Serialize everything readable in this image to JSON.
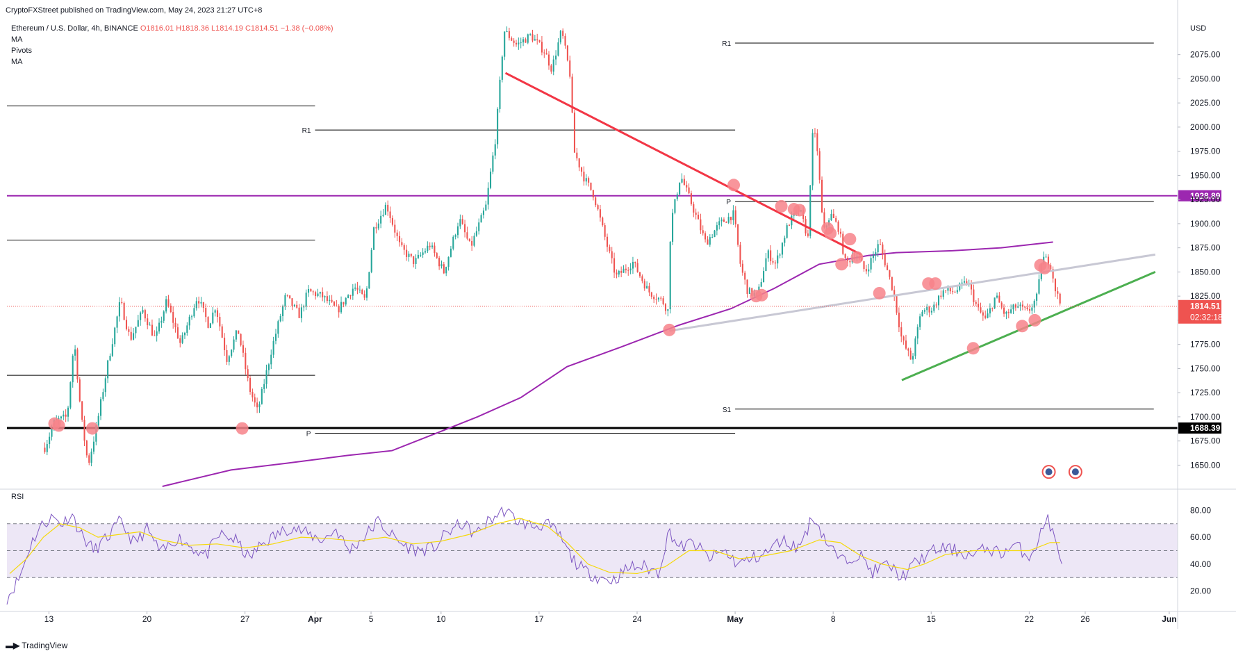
{
  "header": {
    "published": "CryptoFXStreet published on TradingView.com, May 24, 2023 21:27 UTC+8",
    "symbol": "Ethereum / U.S. Dollar, 4h, BINANCE",
    "ohlc": {
      "o": "O1816.01",
      "h": "H1818.36",
      "l": "L1814.19",
      "c": "C1814.51",
      "change": "−1.38 (−0.08%)"
    },
    "indicators": [
      "MA",
      "Pivots",
      "MA"
    ]
  },
  "footer": {
    "brand": "TradingView"
  },
  "colors": {
    "up": "#26a69a",
    "down": "#ef5350",
    "ma": "#9c27b0",
    "purple_level": "#9c27b0",
    "red_trend": "#f23645",
    "green_trend": "#4caf50",
    "grey_trend": "#c8c8d4",
    "marker": "#f7838a",
    "rsi": "#7e57c2",
    "rsi_ma": "#f5d90a",
    "rsi_band": "#ede7f6"
  },
  "chart_data": [
    {
      "type": "candlestick",
      "title": "Ethereum / U.S. Dollar, 4h, BINANCE",
      "y_unit": "USD",
      "ylim": [
        1628,
        2110
      ],
      "y_ticks": [
        1650,
        1675,
        1700,
        1725,
        1750,
        1775,
        1800,
        1825,
        1850,
        1875,
        1900,
        1925,
        1950,
        1975,
        2000,
        2025,
        2050,
        2075
      ],
      "x_ticks": [
        "13",
        "20",
        "27",
        "Apr",
        "5",
        "10",
        "17",
        "24",
        "May",
        "8",
        "15",
        "22",
        "26",
        "Jun"
      ],
      "x_tick_days": [
        0,
        7,
        14,
        19,
        23,
        28,
        35,
        42,
        49,
        56,
        63,
        70,
        74,
        80
      ],
      "last_price_label": "1814.51",
      "countdown_label": "02:32:18",
      "anchor_closes": [
        [
          -0.3,
          1668
        ],
        [
          0.4,
          1695
        ],
        [
          1.3,
          1700
        ],
        [
          1.8,
          1780
        ],
        [
          2.3,
          1700
        ],
        [
          2.8,
          1650
        ],
        [
          3.4,
          1690
        ],
        [
          4.2,
          1755
        ],
        [
          5.1,
          1820
        ],
        [
          5.8,
          1780
        ],
        [
          6.7,
          1810
        ],
        [
          7.6,
          1780
        ],
        [
          8.4,
          1820
        ],
        [
          9.4,
          1775
        ],
        [
          10.6,
          1825
        ],
        [
          11.4,
          1795
        ],
        [
          11.9,
          1815
        ],
        [
          12.7,
          1760
        ],
        [
          13.5,
          1790
        ],
        [
          14.3,
          1730
        ],
        [
          14.9,
          1705
        ],
        [
          15.9,
          1770
        ],
        [
          16.9,
          1825
        ],
        [
          17.9,
          1805
        ],
        [
          18.5,
          1830
        ],
        [
          19.5,
          1825
        ],
        [
          20.6,
          1810
        ],
        [
          21.8,
          1835
        ],
        [
          22.6,
          1820
        ],
        [
          23.2,
          1895
        ],
        [
          24.1,
          1920
        ],
        [
          25.1,
          1875
        ],
        [
          26.1,
          1860
        ],
        [
          27.2,
          1878
        ],
        [
          28.2,
          1850
        ],
        [
          29.3,
          1905
        ],
        [
          30.1,
          1875
        ],
        [
          31.2,
          1918
        ],
        [
          31.9,
          1990
        ],
        [
          32.5,
          2100
        ],
        [
          33.4,
          2085
        ],
        [
          34.4,
          2095
        ],
        [
          35.4,
          2078
        ],
        [
          35.9,
          2060
        ],
        [
          36.6,
          2100
        ],
        [
          37.2,
          2055
        ],
        [
          37.5,
          1975
        ],
        [
          38.2,
          1948
        ],
        [
          38.9,
          1930
        ],
        [
          39.9,
          1875
        ],
        [
          40.5,
          1845
        ],
        [
          41.7,
          1860
        ],
        [
          42.8,
          1830
        ],
        [
          43.8,
          1820
        ],
        [
          44.2,
          1810
        ],
        [
          44.4,
          1900
        ],
        [
          45.1,
          1950
        ],
        [
          45.9,
          1920
        ],
        [
          46.9,
          1880
        ],
        [
          47.9,
          1900
        ],
        [
          48.9,
          1910
        ],
        [
          49.4,
          1855
        ],
        [
          49.9,
          1830
        ],
        [
          50.6,
          1825
        ],
        [
          51.3,
          1870
        ],
        [
          51.9,
          1858
        ],
        [
          52.8,
          1900
        ],
        [
          53.6,
          1915
        ],
        [
          54.2,
          1885
        ],
        [
          54.5,
          1990
        ],
        [
          54.8,
          1990
        ],
        [
          55.3,
          1890
        ],
        [
          55.8,
          1910
        ],
        [
          56.4,
          1895
        ],
        [
          56.9,
          1858
        ],
        [
          57.6,
          1870
        ],
        [
          58.3,
          1850
        ],
        [
          59.3,
          1880
        ],
        [
          60.3,
          1830
        ],
        [
          60.9,
          1780
        ],
        [
          61.6,
          1758
        ],
        [
          62.3,
          1810
        ],
        [
          63.1,
          1812
        ],
        [
          63.8,
          1830
        ],
        [
          64.7,
          1830
        ],
        [
          65.6,
          1840
        ],
        [
          66.3,
          1812
        ],
        [
          66.9,
          1800
        ],
        [
          67.6,
          1825
        ],
        [
          68.3,
          1805
        ],
        [
          69.1,
          1815
        ],
        [
          69.9,
          1808
        ],
        [
          70.6,
          1825
        ],
        [
          70.9,
          1865
        ],
        [
          71.5,
          1860
        ],
        [
          71.9,
          1830
        ],
        [
          72.3,
          1814.51
        ]
      ],
      "horizontal_levels": [
        {
          "price": 1928.89,
          "label": "1928.89",
          "color": "#9c27b0",
          "from_day": -3.0,
          "to_day": 80.6,
          "width": 2
        },
        {
          "price": 1688.39,
          "label": "1688.39",
          "color": "#000000",
          "from_day": -3.0,
          "to_day": 80.6,
          "width": 3
        }
      ],
      "pivots": [
        {
          "label": "R1",
          "price": 1997,
          "from_day": 19.0,
          "to_day": 49.0
        },
        {
          "label": "P",
          "price": 1683,
          "from_day": 19.0,
          "to_day": 49.0
        },
        {
          "label": "",
          "price": 2022,
          "from_day": -3.0,
          "to_day": 19.0
        },
        {
          "label": "",
          "price": 1883,
          "from_day": -3.0,
          "to_day": 19.0
        },
        {
          "label": "",
          "price": 1743,
          "from_day": -3.0,
          "to_day": 19.0
        },
        {
          "label": "R1",
          "price": 2087,
          "from_day": 49.0,
          "to_day": 78.9
        },
        {
          "label": "P",
          "price": 1923,
          "from_day": 49.0,
          "to_day": 78.9
        },
        {
          "label": "S1",
          "price": 1708,
          "from_day": 49.0,
          "to_day": 78.9
        }
      ],
      "moving_average": [
        [
          8.1,
          1628
        ],
        [
          13.0,
          1645
        ],
        [
          17.0,
          1652
        ],
        [
          21.3,
          1660
        ],
        [
          24.5,
          1665
        ],
        [
          28.0,
          1685
        ],
        [
          30.6,
          1700
        ],
        [
          33.7,
          1720
        ],
        [
          37.0,
          1752
        ],
        [
          40.8,
          1772
        ],
        [
          45.0,
          1795
        ],
        [
          48.7,
          1812
        ],
        [
          51.8,
          1833
        ],
        [
          55.0,
          1858
        ],
        [
          58.5,
          1867
        ],
        [
          60.5,
          1870
        ],
        [
          64.5,
          1872
        ],
        [
          68.0,
          1875
        ],
        [
          71.7,
          1881
        ]
      ],
      "trendlines": [
        {
          "color": "#f23645",
          "width": 3,
          "points": [
            [
              32.6,
              2056
            ],
            [
              58.0,
              1868
            ]
          ]
        },
        {
          "color": "#c8c8d4",
          "width": 3,
          "points": [
            [
              44.3,
              1789
            ],
            [
              79.0,
              1868
            ]
          ]
        },
        {
          "color": "#4caf50",
          "width": 3,
          "points": [
            [
              60.9,
              1738
            ],
            [
              79.0,
              1850
            ]
          ]
        }
      ],
      "markers": [
        [
          0.4,
          1693
        ],
        [
          0.7,
          1691
        ],
        [
          3.1,
          1688
        ],
        [
          13.8,
          1688
        ],
        [
          44.3,
          1790
        ],
        [
          48.9,
          1940
        ],
        [
          50.5,
          1825
        ],
        [
          50.9,
          1826
        ],
        [
          52.3,
          1918
        ],
        [
          53.2,
          1915
        ],
        [
          53.6,
          1914
        ],
        [
          55.6,
          1895
        ],
        [
          55.8,
          1890
        ],
        [
          56.6,
          1858
        ],
        [
          57.2,
          1884
        ],
        [
          57.7,
          1865
        ],
        [
          59.3,
          1828
        ],
        [
          62.8,
          1838
        ],
        [
          63.3,
          1838
        ],
        [
          66.0,
          1771
        ],
        [
          69.5,
          1794
        ],
        [
          70.4,
          1800
        ],
        [
          70.8,
          1857
        ],
        [
          71.1,
          1854
        ]
      ],
      "event_icons": [
        [
          71.4,
          1643
        ],
        [
          73.3,
          1643
        ]
      ]
    },
    {
      "type": "line",
      "title": "RSI",
      "ylim": [
        10,
        90
      ],
      "y_ticks": [
        20,
        40,
        60,
        80
      ],
      "band": [
        30,
        70
      ],
      "midline": 50,
      "anchors": [
        [
          -3.0,
          15
        ],
        [
          -2.1,
          30
        ],
        [
          -1.3,
          55
        ],
        [
          -0.6,
          68
        ],
        [
          0.2,
          75
        ],
        [
          1.0,
          70
        ],
        [
          1.6,
          78
        ],
        [
          2.3,
          62
        ],
        [
          3.2,
          50
        ],
        [
          4.2,
          60
        ],
        [
          5.1,
          72
        ],
        [
          6.1,
          55
        ],
        [
          7.0,
          66
        ],
        [
          8.0,
          48
        ],
        [
          9.2,
          60
        ],
        [
          10.3,
          52
        ],
        [
          11.2,
          46
        ],
        [
          12.2,
          62
        ],
        [
          13.3,
          58
        ],
        [
          14.3,
          44
        ],
        [
          15.2,
          55
        ],
        [
          16.3,
          62
        ],
        [
          17.3,
          68
        ],
        [
          18.5,
          62
        ],
        [
          19.6,
          58
        ],
        [
          20.5,
          66
        ],
        [
          21.4,
          50
        ],
        [
          22.5,
          60
        ],
        [
          23.5,
          72
        ],
        [
          24.4,
          62
        ],
        [
          25.3,
          54
        ],
        [
          26.3,
          50
        ],
        [
          27.5,
          52
        ],
        [
          28.5,
          64
        ],
        [
          29.5,
          70
        ],
        [
          30.5,
          62
        ],
        [
          31.4,
          72
        ],
        [
          32.5,
          80
        ],
        [
          33.5,
          72
        ],
        [
          34.6,
          68
        ],
        [
          35.5,
          70
        ],
        [
          36.4,
          62
        ],
        [
          37.3,
          45
        ],
        [
          38.2,
          35
        ],
        [
          39.3,
          30
        ],
        [
          40.3,
          28
        ],
        [
          41.5,
          38
        ],
        [
          42.5,
          38
        ],
        [
          43.5,
          34
        ],
        [
          44.3,
          65
        ],
        [
          45.0,
          52
        ],
        [
          46.0,
          56
        ],
        [
          47.2,
          44
        ],
        [
          48.2,
          50
        ],
        [
          49.2,
          40
        ],
        [
          50.2,
          44
        ],
        [
          51.2,
          48
        ],
        [
          52.3,
          58
        ],
        [
          53.5,
          52
        ],
        [
          54.6,
          76
        ],
        [
          55.6,
          55
        ],
        [
          56.6,
          42
        ],
        [
          57.8,
          48
        ],
        [
          58.8,
          34
        ],
        [
          59.9,
          40
        ],
        [
          60.9,
          30
        ],
        [
          61.8,
          40
        ],
        [
          62.8,
          48
        ],
        [
          63.8,
          52
        ],
        [
          64.8,
          50
        ],
        [
          65.9,
          46
        ],
        [
          67.0,
          52
        ],
        [
          68.0,
          48
        ],
        [
          69.0,
          54
        ],
        [
          70.0,
          46
        ],
        [
          70.6,
          56
        ],
        [
          71.3,
          76
        ],
        [
          71.8,
          58
        ],
        [
          72.2,
          45
        ],
        [
          72.4,
          44
        ]
      ],
      "ma_anchors": [
        [
          -2.8,
          33
        ],
        [
          -1.6,
          44
        ],
        [
          -0.4,
          60
        ],
        [
          0.8,
          70
        ],
        [
          2.2,
          67
        ],
        [
          3.5,
          60
        ],
        [
          5.0,
          62
        ],
        [
          6.5,
          64
        ],
        [
          8.0,
          58
        ],
        [
          10.0,
          54
        ],
        [
          12.0,
          55
        ],
        [
          14.0,
          52
        ],
        [
          16.0,
          55
        ],
        [
          18.0,
          60
        ],
        [
          20.0,
          59
        ],
        [
          22.0,
          57
        ],
        [
          24.0,
          60
        ],
        [
          26.0,
          55
        ],
        [
          28.0,
          57
        ],
        [
          30.0,
          62
        ],
        [
          32.0,
          70
        ],
        [
          33.6,
          74
        ],
        [
          35.6,
          68
        ],
        [
          37.0,
          56
        ],
        [
          38.5,
          40
        ],
        [
          40.0,
          34
        ],
        [
          42.0,
          33
        ],
        [
          44.0,
          38
        ],
        [
          45.7,
          50
        ],
        [
          47.5,
          50
        ],
        [
          49.3,
          44
        ],
        [
          51.0,
          46
        ],
        [
          53.0,
          50
        ],
        [
          55.0,
          58
        ],
        [
          56.5,
          56
        ],
        [
          58.0,
          46
        ],
        [
          59.5,
          40
        ],
        [
          61.3,
          36
        ],
        [
          62.5,
          40
        ],
        [
          64.0,
          47
        ],
        [
          66.0,
          50
        ],
        [
          68.0,
          50
        ],
        [
          70.0,
          50
        ],
        [
          71.5,
          56
        ],
        [
          72.2,
          56
        ]
      ]
    }
  ]
}
